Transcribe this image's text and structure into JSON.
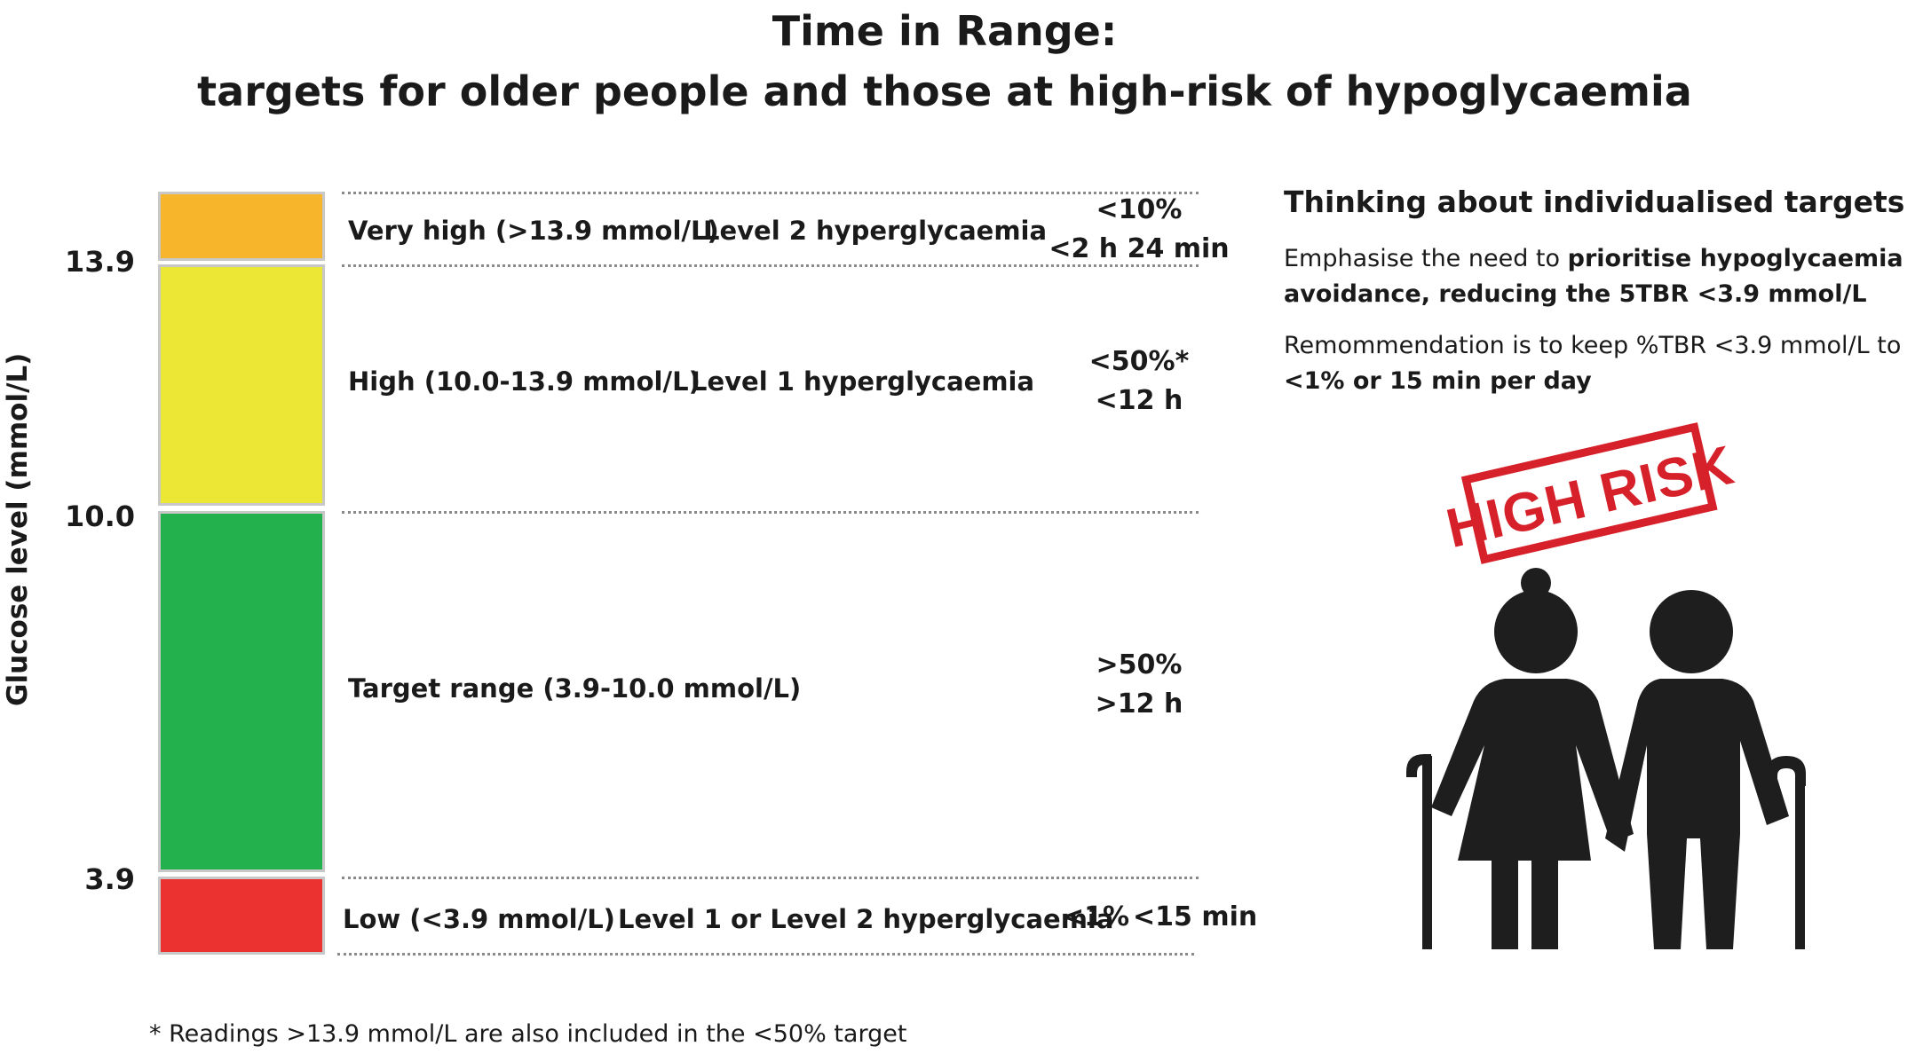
{
  "title": {
    "line1": "Time in Range:",
    "line2": "targets for older people and those at high-risk of hypoglycaemia"
  },
  "axis": {
    "ylabel": "Glucose level (mmol/L)",
    "ticks": [
      "13.9",
      "10.0",
      "3.9"
    ]
  },
  "colors": {
    "very_high": "#F7B52C",
    "high": "#ECE634",
    "target": "#23B14D",
    "low": "#EC3230",
    "stamp": "#D6202A",
    "figures": "#1e1e1e"
  },
  "rows": {
    "very_high": {
      "range": "Very high (>13.9 mmol/L)",
      "level": "Level 2 hyperglycaemia",
      "pct": "<10%",
      "time": "<2 h 24 min"
    },
    "high": {
      "range": "High (10.0-13.9 mmol/L)",
      "level": "Level 1 hyperglycaemia",
      "pct": "<50%*",
      "time": "<12 h"
    },
    "target": {
      "range": "Target range (3.9-10.0 mmol/L)",
      "pct": ">50%",
      "time": ">12 h"
    },
    "low": {
      "range": "Low (<3.9 mmol/L)",
      "level": "Level 1 or Level 2 hyperglycaemia",
      "pct": "<1%",
      "time": "<15 min"
    }
  },
  "side": {
    "heading": "Thinking about individualised targets",
    "p1_prefix": "Emphasise the need to ",
    "p1_bold": "prioritise hypoglycaemia avoidance, reducing the 5TBR <3.9 mmol/L",
    "p2_prefix": "Remommendation is to keep %TBR <3.9 mmol/L to ",
    "p2_bold": "<1% or 15 min per day",
    "stamp_text": "HIGH RISK",
    "figure_icon": "elderly-couple-with-canes-icon"
  },
  "footnote": "* Readings >13.9 mmol/L are also included in the <50% target"
}
